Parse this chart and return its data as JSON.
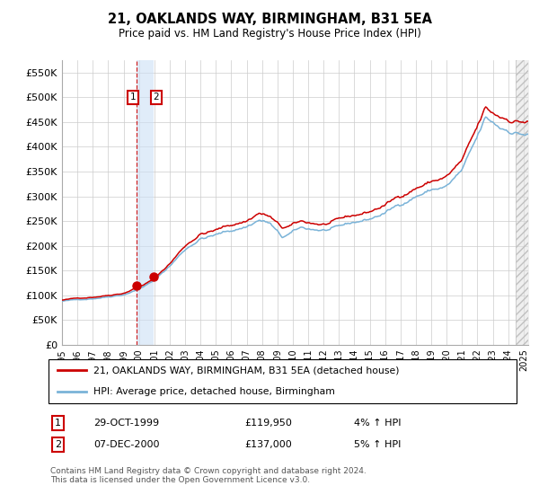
{
  "title": "21, OAKLANDS WAY, BIRMINGHAM, B31 5EA",
  "subtitle": "Price paid vs. HM Land Registry's House Price Index (HPI)",
  "ylim": [
    0,
    575000
  ],
  "yticks": [
    0,
    50000,
    100000,
    150000,
    200000,
    250000,
    300000,
    350000,
    400000,
    450000,
    500000,
    550000
  ],
  "ytick_labels": [
    "£0",
    "£50K",
    "£100K",
    "£150K",
    "£200K",
    "£250K",
    "£300K",
    "£350K",
    "£400K",
    "£450K",
    "£500K",
    "£550K"
  ],
  "hpi_color": "#7ab3d8",
  "price_color": "#cc0000",
  "background_color": "#ffffff",
  "grid_color": "#cccccc",
  "purchase1_date": 1999.83,
  "purchase1_price": 119950,
  "purchase2_date": 2000.93,
  "purchase2_price": 137000,
  "legend_line1": "21, OAKLANDS WAY, BIRMINGHAM, B31 5EA (detached house)",
  "legend_line2": "HPI: Average price, detached house, Birmingham",
  "transaction1_label": "29-OCT-1999",
  "transaction1_price_label": "£119,950",
  "transaction1_hpi_label": "4% ↑ HPI",
  "transaction2_label": "07-DEC-2000",
  "transaction2_price_label": "£137,000",
  "transaction2_hpi_label": "5% ↑ HPI",
  "footnote": "Contains HM Land Registry data © Crown copyright and database right 2024.\nThis data is licensed under the Open Government Licence v3.0.",
  "xmin": 1995.0,
  "xmax": 2025.3,
  "hatch_start": 2024.5
}
